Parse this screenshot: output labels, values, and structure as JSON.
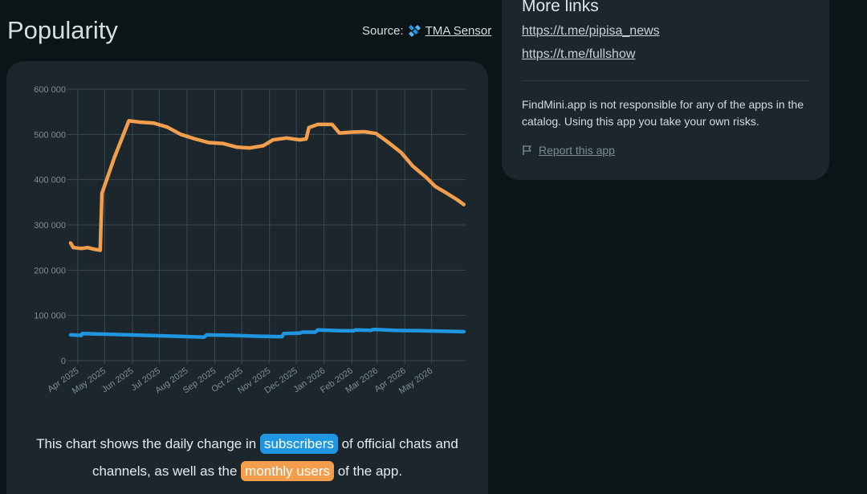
{
  "section": {
    "title": "Popularity",
    "source_prefix": "Source:",
    "source_link": "TMA Sensor"
  },
  "links_panel": {
    "title": "More links",
    "links": [
      "https://t.me/pipisa_news",
      "https://t.me/fullshow"
    ],
    "disclaimer": "FindMini.app is not responsible for any of the apps in the catalog. Using this app you take your own risks.",
    "report_label": "Report this app"
  },
  "caption": {
    "part1": "This chart shows the daily change in ",
    "subscribers": "subscribers",
    "part2": " of official chats and channels, as well as the ",
    "monthly_users": "monthly users",
    "part3": " of the app."
  },
  "colors": {
    "subscribers": "#2196e0",
    "monthly_users": "#f29e4c",
    "grid": "#3b4a52",
    "tick_text": "#7f8d95"
  },
  "icons": {
    "source": "tma-sensor-icon",
    "report": "flag-icon"
  },
  "chart_data": {
    "type": "line",
    "ylim": [
      0,
      600000
    ],
    "yticks": [
      "0",
      "100 000",
      "200 000",
      "300 000",
      "400 000",
      "500 000",
      "600 000"
    ],
    "xticks": [
      "Apr 2025",
      "May 2025",
      "Jun 2025",
      "Jul 2025",
      "Aug 2025",
      "Sep 2025",
      "Oct 2025",
      "Nov 2025",
      "Dec 2025",
      "Jan 2026",
      "Feb 2026",
      "Mar 2026",
      "Apr 2026",
      "May 2026"
    ],
    "x_range": [
      "2025-03-24",
      "2026-06-08"
    ],
    "grid": true,
    "series": [
      {
        "key": "monthly_users",
        "points": [
          [
            "2025-03-24",
            260000
          ],
          [
            "2025-03-27",
            250000
          ],
          [
            "2025-04-05",
            248000
          ],
          [
            "2025-04-12",
            250000
          ],
          [
            "2025-04-20",
            246000
          ],
          [
            "2025-04-26",
            244000
          ],
          [
            "2025-04-28",
            370000
          ],
          [
            "2025-05-05",
            410000
          ],
          [
            "2025-05-12",
            450000
          ],
          [
            "2025-05-20",
            490000
          ],
          [
            "2025-05-28",
            530000
          ],
          [
            "2025-06-10",
            527000
          ],
          [
            "2025-06-25",
            525000
          ],
          [
            "2025-07-10",
            516000
          ],
          [
            "2025-07-25",
            500000
          ],
          [
            "2025-08-10",
            490000
          ],
          [
            "2025-08-25",
            482000
          ],
          [
            "2025-09-10",
            480000
          ],
          [
            "2025-09-25",
            472000
          ],
          [
            "2025-10-10",
            470000
          ],
          [
            "2025-10-25",
            475000
          ],
          [
            "2025-11-05",
            488000
          ],
          [
            "2025-11-20",
            492000
          ],
          [
            "2025-12-05",
            488000
          ],
          [
            "2025-12-12",
            490000
          ],
          [
            "2025-12-15",
            515000
          ],
          [
            "2025-12-25",
            522000
          ],
          [
            "2026-01-10",
            522000
          ],
          [
            "2026-01-18",
            503000
          ],
          [
            "2026-02-01",
            505000
          ],
          [
            "2026-02-15",
            506000
          ],
          [
            "2026-02-28",
            502000
          ],
          [
            "2026-03-12",
            485000
          ],
          [
            "2026-03-28",
            460000
          ],
          [
            "2026-04-10",
            430000
          ],
          [
            "2026-04-25",
            405000
          ],
          [
            "2026-05-05",
            385000
          ],
          [
            "2026-05-18",
            370000
          ],
          [
            "2026-05-30",
            355000
          ],
          [
            "2026-06-06",
            345000
          ]
        ]
      },
      {
        "key": "subscribers",
        "points": [
          [
            "2025-03-24",
            57000
          ],
          [
            "2025-04-05",
            56000
          ],
          [
            "2025-04-06",
            60000
          ],
          [
            "2025-05-10",
            58000
          ],
          [
            "2025-06-15",
            56000
          ],
          [
            "2025-07-20",
            54000
          ],
          [
            "2025-08-20",
            52000
          ],
          [
            "2025-08-23",
            57000
          ],
          [
            "2025-09-20",
            56000
          ],
          [
            "2025-10-20",
            54000
          ],
          [
            "2025-11-15",
            53000
          ],
          [
            "2025-11-17",
            60000
          ],
          [
            "2025-12-05",
            61000
          ],
          [
            "2025-12-08",
            63000
          ],
          [
            "2025-12-22",
            63000
          ],
          [
            "2025-12-25",
            68000
          ],
          [
            "2026-01-20",
            66000
          ],
          [
            "2026-02-03",
            66000
          ],
          [
            "2026-02-05",
            68000
          ],
          [
            "2026-02-22",
            67000
          ],
          [
            "2026-02-25",
            69000
          ],
          [
            "2026-03-20",
            67000
          ],
          [
            "2026-04-20",
            66000
          ],
          [
            "2026-05-15",
            65000
          ],
          [
            "2026-06-06",
            64000
          ]
        ]
      }
    ]
  }
}
